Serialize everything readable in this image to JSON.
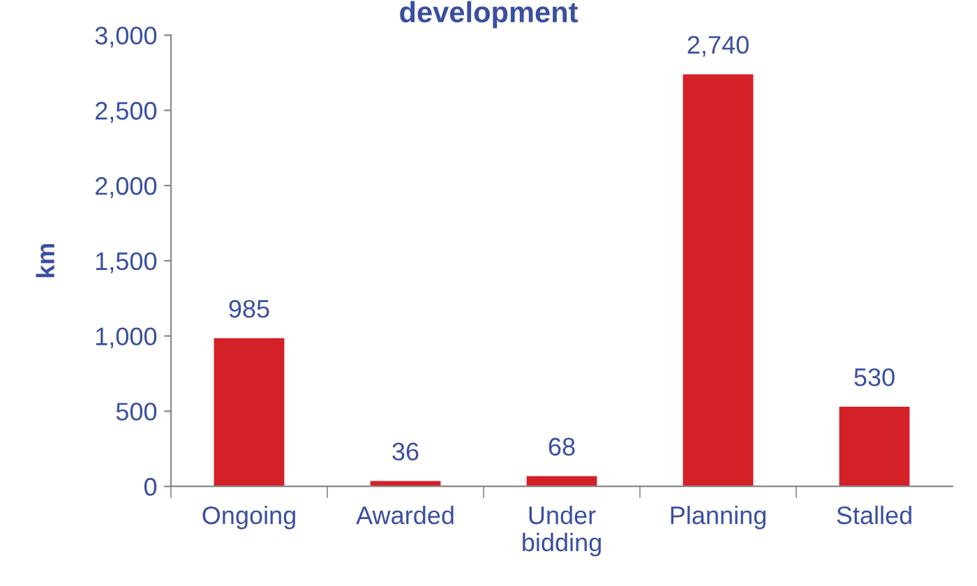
{
  "chart_data": {
    "type": "bar",
    "title": "development",
    "ylabel": "km",
    "categories": [
      "Ongoing",
      "Awarded",
      "Under\nbidding",
      "Planning",
      "Stalled"
    ],
    "values": [
      985,
      36,
      68,
      2740,
      530
    ],
    "value_labels": [
      "985",
      "36",
      "68",
      "2,740",
      "530"
    ],
    "color": "#d42027",
    "ylim": [
      0,
      3000
    ],
    "yticks": [
      0,
      500,
      {
        "value": 1000,
        "label": "1,000"
      },
      {
        "value": 1500,
        "label": "1,500"
      },
      {
        "value": 2000,
        "label": "2,000"
      },
      {
        "value": 2500,
        "label": "2,500"
      },
      {
        "value": 3000,
        "label": "3,000"
      }
    ],
    "grid": false,
    "legend": false
  }
}
